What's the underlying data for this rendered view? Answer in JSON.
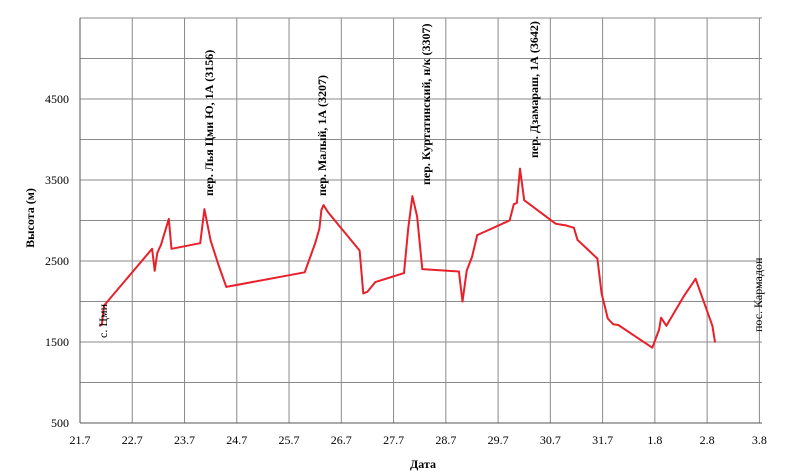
{
  "chart_data": {
    "type": "line",
    "title": "",
    "xlabel": "Дата",
    "ylabel": "Высота (м)",
    "y_ticks": [
      "500",
      "1500",
      "2500",
      "3500",
      "4500"
    ],
    "ylim": [
      500,
      5500
    ],
    "x_ticks": [
      "21.7",
      "22.7",
      "23.7",
      "24.7",
      "25.7",
      "26.7",
      "27.7",
      "28.7",
      "29.7",
      "30.7",
      "31.7",
      "1.8",
      "2.8",
      "3.8"
    ],
    "xlim": [
      0,
      13.05
    ],
    "grid": true,
    "line_color": "#e8202a",
    "series": [
      {
        "points": [
          [
            0.38,
            1700
          ],
          [
            0.42,
            1720
          ],
          [
            0.46,
            1950
          ],
          [
            0.5,
            1980
          ],
          [
            1.38,
            2650
          ],
          [
            1.43,
            2380
          ],
          [
            1.48,
            2600
          ],
          [
            1.55,
            2700
          ],
          [
            1.7,
            3020
          ],
          [
            1.75,
            2650
          ],
          [
            2.3,
            2720
          ],
          [
            2.38,
            3140
          ],
          [
            2.5,
            2750
          ],
          [
            2.65,
            2450
          ],
          [
            2.8,
            2180
          ],
          [
            4.3,
            2360
          ],
          [
            4.5,
            2720
          ],
          [
            4.58,
            2900
          ],
          [
            4.62,
            3130
          ],
          [
            4.66,
            3190
          ],
          [
            4.75,
            3100
          ],
          [
            4.85,
            3020
          ],
          [
            5.35,
            2630
          ],
          [
            5.42,
            2100
          ],
          [
            5.5,
            2120
          ],
          [
            5.65,
            2240
          ],
          [
            6.2,
            2350
          ],
          [
            6.28,
            2900
          ],
          [
            6.36,
            3300
          ],
          [
            6.45,
            3050
          ],
          [
            6.55,
            2400
          ],
          [
            7.25,
            2370
          ],
          [
            7.32,
            2000
          ],
          [
            7.4,
            2380
          ],
          [
            7.5,
            2550
          ],
          [
            7.6,
            2820
          ],
          [
            8.22,
            3000
          ],
          [
            8.3,
            3200
          ],
          [
            8.36,
            3220
          ],
          [
            8.42,
            3640
          ],
          [
            8.5,
            3250
          ],
          [
            9.1,
            2960
          ],
          [
            9.2,
            2950
          ],
          [
            9.3,
            2940
          ],
          [
            9.45,
            2910
          ],
          [
            9.52,
            2760
          ],
          [
            9.9,
            2530
          ],
          [
            9.98,
            2100
          ],
          [
            10.1,
            1790
          ],
          [
            10.2,
            1720
          ],
          [
            10.3,
            1710
          ],
          [
            10.95,
            1430
          ],
          [
            11.08,
            1650
          ],
          [
            11.12,
            1800
          ],
          [
            11.22,
            1700
          ],
          [
            11.55,
            2060
          ],
          [
            11.78,
            2280
          ],
          [
            12.1,
            1700
          ],
          [
            12.15,
            1500
          ]
        ]
      }
    ],
    "annotations": [
      {
        "text": "с. Цми",
        "x": 0.46,
        "y": 1950
      },
      {
        "text": "пер. Лья Цми Ю, 1А (3156)",
        "x": 2.38,
        "y": 3156
      },
      {
        "text": "пер. Малый, 1А (3207)",
        "x": 4.66,
        "y": 3207
      },
      {
        "text": "пер. Куртатинский, н/к (3307)",
        "x": 6.36,
        "y": 3307
      },
      {
        "text": "пер. Дзамараш, 1А (3642)",
        "x": 8.42,
        "y": 3642
      },
      {
        "text": "пос. Кармадон",
        "x": 12.15,
        "y": 1700
      }
    ]
  }
}
